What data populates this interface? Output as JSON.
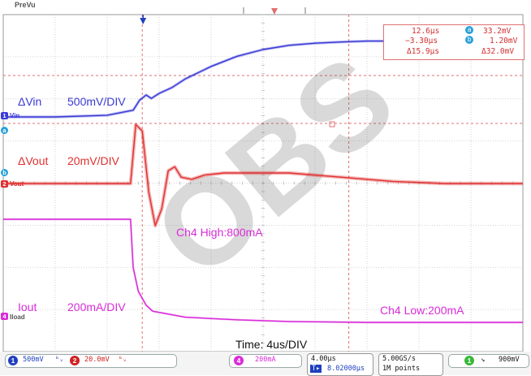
{
  "top_bar": {
    "mode_label": "PreVu",
    "trigger_pos_icon": "trigger-position-icon"
  },
  "cursor_readout": {
    "t1": "12.6µs",
    "t2": "−3.30µs",
    "dt": "Δ15.9µs",
    "v_a": "33.2mV",
    "v_b": "1.20mV",
    "dv": "Δ32.0mV",
    "a_label": "a",
    "b_label": "b"
  },
  "channels": {
    "vin": {
      "label": "ΔVin",
      "scale": "500mV/DIV",
      "marker": "1",
      "marker_name": "Vin",
      "color": "#3a3ad6"
    },
    "vout": {
      "label": "ΔVout",
      "scale": "20mV/DIV",
      "marker": "2",
      "marker_name": "Vout",
      "color": "#e03030"
    },
    "iout": {
      "label": "Iout",
      "scale": "200mA/DIV",
      "marker": "4",
      "marker_name": "Iload",
      "color": "#d82cd8"
    }
  },
  "annotations": {
    "ch4_high": "Ch4 High:800mA",
    "ch4_low": "Ch4 Low:200mA",
    "time": "Time: 4us/DIV"
  },
  "status_bar": {
    "ch1": {
      "num": "1",
      "value": "500mV",
      "color": "#1f3fbf"
    },
    "ch2": {
      "num": "2",
      "value": "20.0mV",
      "color": "#d02020"
    },
    "ch4": {
      "num": "4",
      "value": "200mA",
      "color": "#d82cd8"
    },
    "timebase": "4.00µs",
    "trigger_offset": "8.02000µs",
    "sample_rate": "5.00GS/s",
    "record_length": "1M points",
    "trig_ch": {
      "num": "1",
      "color": "#38b838"
    },
    "trig_level": "900mV"
  },
  "colors": {
    "grid": "#c8c8c8",
    "cursor": "#e07070"
  },
  "watermark": "OBSOLETE — THIS DEVICE … PLEASE CONTACT … REPRESENTATIVE",
  "chart_data": {
    "type": "line",
    "title": "",
    "xlabel": "Time: 4us/DIV",
    "ylabel": "",
    "x_unit": "µs",
    "x_per_div": 4,
    "divisions_x": 10,
    "divisions_y": 8,
    "grid": true,
    "legend_placement": "none",
    "cursors": {
      "t1_us": 12.6,
      "t2_us": -3.3,
      "dt_us": 15.9
    },
    "series": [
      {
        "name": "ΔVin",
        "unit": "mV",
        "per_div": 500,
        "x": [
          -14,
          -10,
          -6,
          -4,
          -3.5,
          -3,
          -2.6,
          -2,
          -1,
          0,
          2,
          4,
          6,
          8,
          10,
          12,
          14,
          16,
          18,
          20,
          26
        ],
        "y": [
          0,
          0,
          20,
          80,
          200,
          260,
          220,
          280,
          350,
          450,
          600,
          720,
          800,
          850,
          875,
          890,
          900,
          900,
          900,
          900,
          900
        ]
      },
      {
        "name": "ΔVout",
        "unit": "mV",
        "per_div": 20,
        "x": [
          -14,
          -6,
          -4.2,
          -3.8,
          -3.3,
          -2.8,
          -2.3,
          -1.8,
          -1.3,
          -0.8,
          -0.3,
          0.5,
          1.5,
          3,
          5,
          8,
          12,
          16,
          20,
          26
        ],
        "y": [
          0,
          0,
          0,
          28,
          25,
          -4,
          -20,
          -12,
          6,
          8,
          3,
          2,
          4,
          5,
          5,
          5,
          3,
          1,
          0,
          0
        ]
      },
      {
        "name": "Iout",
        "unit": "mA",
        "x": [
          -14,
          -4.2,
          -4.0,
          -3.6,
          -3.0,
          -2.5,
          0,
          4,
          8,
          14,
          26
        ],
        "y": [
          800,
          800,
          520,
          380,
          300,
          265,
          230,
          215,
          205,
          200,
          200
        ]
      }
    ]
  }
}
